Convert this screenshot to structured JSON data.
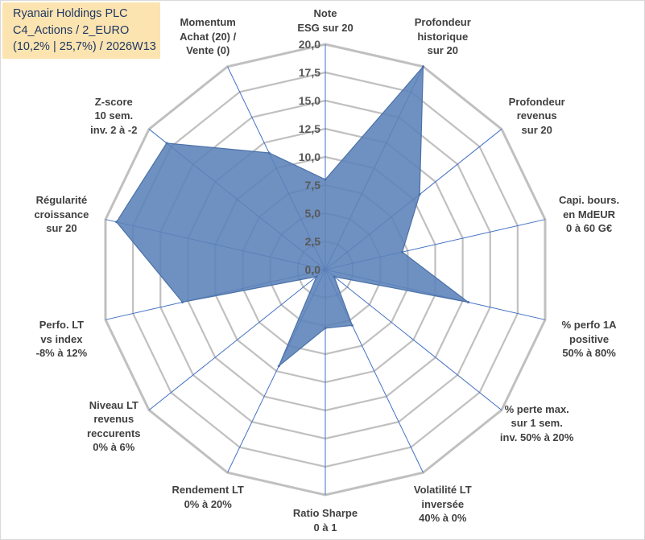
{
  "title_box": {
    "line1": "Ryanair Holdings PLC",
    "line2": "C4_Actions / 2_EURO",
    "line3": "(10,2% | 25,7%) / 2026W13"
  },
  "colors": {
    "fill": "#5b82b8",
    "stroke": "#4a71a8",
    "grid": "#c0c0c0",
    "axis": "#4472c4",
    "title_bg": "#fce4b0"
  },
  "chart_data": {
    "type": "radar",
    "rmin": 0,
    "rmax": 20,
    "ticks": [
      "0,0",
      "2,5",
      "5,0",
      "7,5",
      "10,0",
      "12,5",
      "15,0",
      "17,5",
      "20,0"
    ],
    "grid_levels": 8,
    "axes": [
      {
        "lines": [
          "Note",
          "ESG sur 20"
        ],
        "value": 8.0
      },
      {
        "lines": [
          "Profondeur",
          "historique",
          "sur 20"
        ],
        "value": 20.0
      },
      {
        "lines": [
          "Profondeur",
          "revenus",
          "sur 20"
        ],
        "value": 10.7
      },
      {
        "lines": [
          "Capi. bours.",
          "en MdEUR",
          "0 à 60 G€"
        ],
        "value": 7.0
      },
      {
        "lines": [
          "% perfo 1A",
          "positive",
          "50% à 80%"
        ],
        "value": 13.0
      },
      {
        "lines": [
          "% perte max.",
          "sur 1 sem.",
          "inv. 50% à 20%"
        ],
        "value": 1.0
      },
      {
        "lines": [
          "Volatilité LT",
          "inversée",
          "40% à 0%"
        ],
        "value": 5.5
      },
      {
        "lines": [
          "Ratio Sharpe",
          "0 à 1"
        ],
        "value": 5.2
      },
      {
        "lines": [
          "Rendement LT",
          "0% à 20%"
        ],
        "value": 9.5
      },
      {
        "lines": [
          "Niveau LT",
          "revenus",
          "reccurents",
          "0% à 6%"
        ],
        "value": 1.0
      },
      {
        "lines": [
          "Perfo. LT",
          "vs index",
          "-8% à 12%"
        ],
        "value": 13.0
      },
      {
        "lines": [
          "Régularité",
          "croissance",
          "sur 20"
        ],
        "value": 19.0
      },
      {
        "lines": [
          "Z-score",
          "10 sem.",
          "inv. 2 à -2"
        ],
        "value": 18.0
      },
      {
        "lines": [
          "Momentum",
          "Achat (20) /",
          "Vente (0)"
        ],
        "value": 11.5
      }
    ]
  }
}
